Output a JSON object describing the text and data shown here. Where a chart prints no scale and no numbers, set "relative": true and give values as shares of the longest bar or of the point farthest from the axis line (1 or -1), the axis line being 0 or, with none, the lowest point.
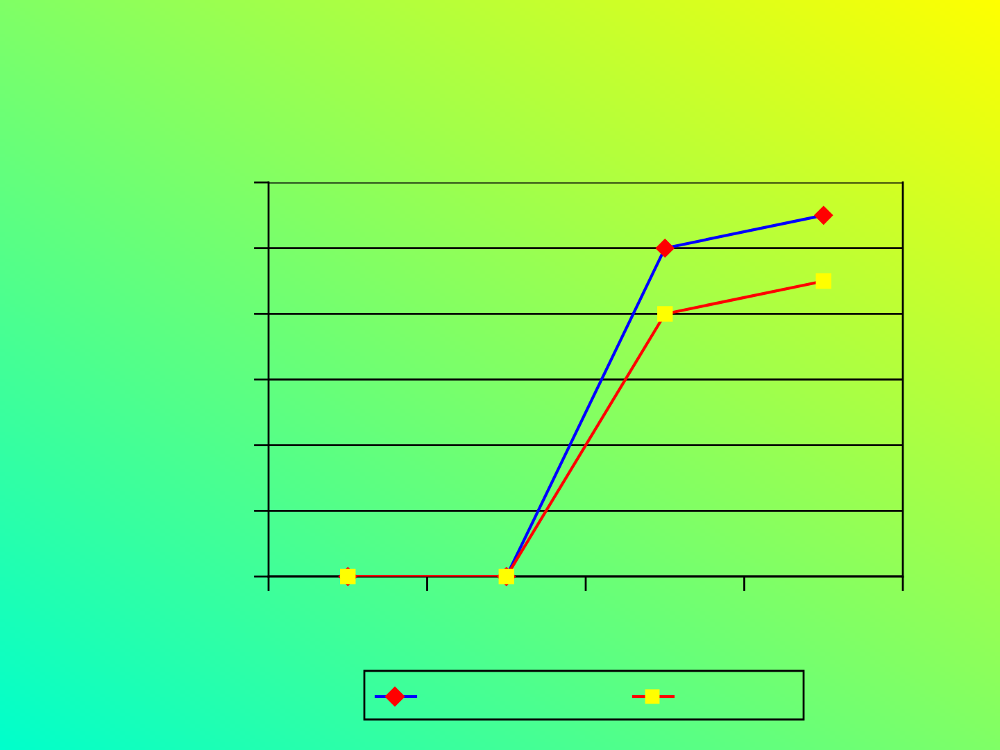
{
  "chart_data": {
    "type": "line",
    "relative": true,
    "categories": [
      null,
      null,
      null,
      null
    ],
    "series": [
      {
        "color": "#0000ff",
        "colors": [
          "#ff0000",
          "#ff0000",
          "#ff0000",
          "#ff0000"
        ],
        "marker": "diamond",
        "values": [
          0,
          0,
          0.909,
          1
        ]
      },
      {
        "color": "#ff0000",
        "colors": [
          "#ffff00",
          "#ffff00",
          "#ffff00",
          "#ffff00"
        ],
        "marker": "square",
        "values": [
          0,
          0,
          0.727,
          0.818
        ]
      }
    ],
    "grid": "y",
    "line_style": "solid"
  }
}
